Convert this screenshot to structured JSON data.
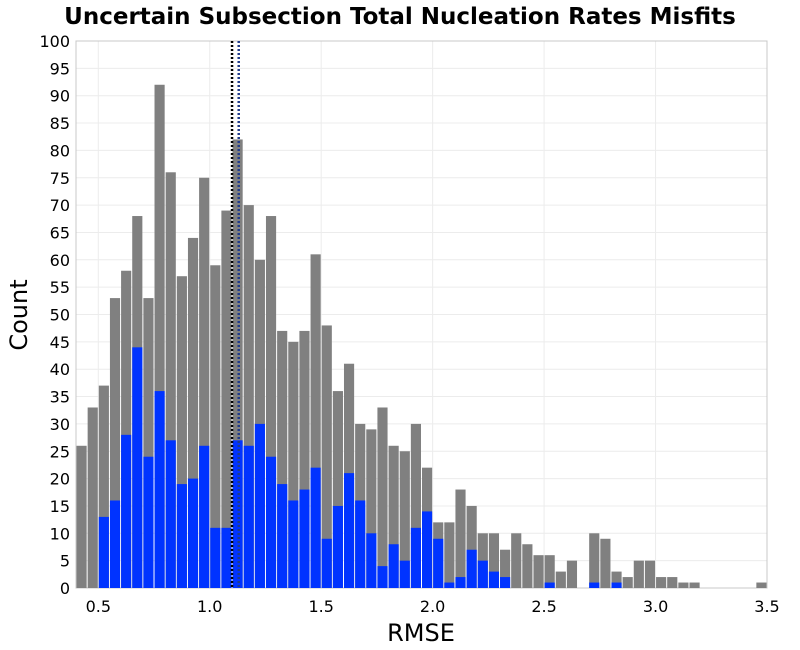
{
  "chart_data": {
    "type": "bar",
    "title": "Uncertain Subsection Total Nucleation Rates Misfits",
    "xlabel": "RMSE",
    "ylabel": "Count",
    "xlim": [
      0.4,
      3.5
    ],
    "ylim": [
      0,
      100
    ],
    "bin_width": 0.05,
    "x_ticks": [
      "0.5",
      "1.0",
      "1.5",
      "2.0",
      "2.5",
      "3.0",
      "3.5"
    ],
    "y_ticks": [
      "0",
      "5",
      "10",
      "15",
      "20",
      "25",
      "30",
      "35",
      "40",
      "45",
      "50",
      "55",
      "60",
      "65",
      "70",
      "75",
      "80",
      "85",
      "90",
      "95",
      "100"
    ],
    "grid": true,
    "stacked": false,
    "x": [
      0.425,
      0.475,
      0.525,
      0.575,
      0.625,
      0.675,
      0.725,
      0.775,
      0.825,
      0.875,
      0.925,
      0.975,
      1.025,
      1.075,
      1.125,
      1.175,
      1.225,
      1.275,
      1.325,
      1.375,
      1.425,
      1.475,
      1.525,
      1.575,
      1.625,
      1.675,
      1.725,
      1.775,
      1.825,
      1.875,
      1.925,
      1.975,
      2.025,
      2.075,
      2.125,
      2.175,
      2.225,
      2.275,
      2.325,
      2.375,
      2.425,
      2.475,
      2.525,
      2.575,
      2.625,
      2.675,
      2.725,
      2.775,
      2.825,
      2.875,
      2.925,
      2.975,
      3.025,
      3.075,
      3.125,
      3.175,
      3.225,
      3.275,
      3.325,
      3.375,
      3.425,
      3.475
    ],
    "series": [
      {
        "color": "#808080",
        "values": [
          26,
          33,
          37,
          53,
          58,
          68,
          53,
          92,
          76,
          57,
          64,
          75,
          59,
          69,
          82,
          70,
          60,
          68,
          47,
          45,
          47,
          61,
          48,
          36,
          41,
          30,
          29,
          33,
          26,
          25,
          30,
          22,
          12,
          12,
          18,
          15,
          10,
          10,
          7,
          10,
          8,
          6,
          6,
          3,
          5,
          0,
          10,
          9,
          3,
          2,
          5,
          5,
          2,
          2,
          1,
          1,
          0,
          0,
          0,
          0,
          0,
          1
        ]
      },
      {
        "color": "#0033ff",
        "values": [
          0,
          0,
          13,
          16,
          28,
          44,
          24,
          36,
          27,
          19,
          20,
          26,
          11,
          11,
          27,
          26,
          30,
          24,
          19,
          16,
          18,
          22,
          9,
          15,
          21,
          16,
          10,
          4,
          8,
          5,
          11,
          14,
          9,
          1,
          2,
          7,
          5,
          3,
          2,
          0,
          0,
          0,
          1,
          0,
          0,
          0,
          1,
          0,
          1,
          0,
          0,
          0,
          0,
          0,
          0,
          0,
          0,
          0,
          0,
          0,
          0,
          0
        ]
      }
    ],
    "vlines": [
      {
        "x": 1.1,
        "color": "#000000",
        "style": "dotted"
      },
      {
        "x": 1.13,
        "color": "#1f3a8a",
        "style": "dotted"
      }
    ]
  }
}
